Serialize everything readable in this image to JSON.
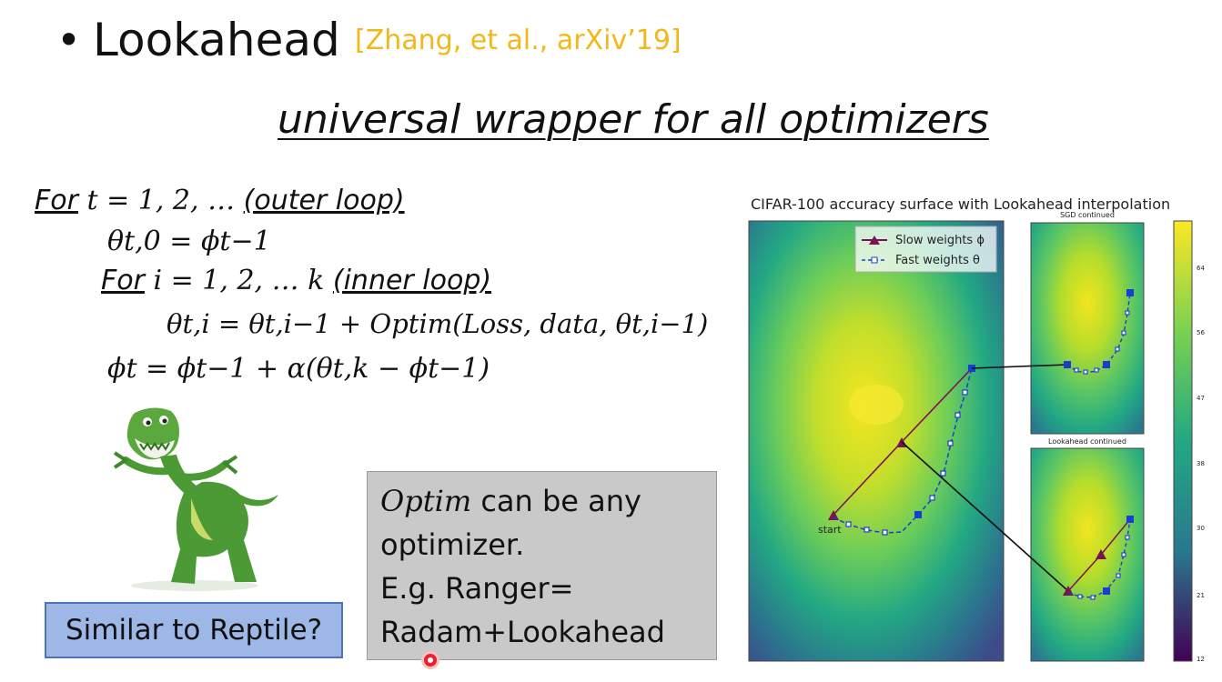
{
  "slide": {
    "bullet": "•",
    "title": "Lookahead",
    "citation": "[Zhang, et al., arXiv’19]",
    "subtitle": "universal wrapper for all optimizers"
  },
  "algorithm": {
    "outer_for": "For",
    "outer_range": "t  =  1, 2, …",
    "outer_comment": "(outer loop)",
    "init": "θt,0 = ϕt−1",
    "inner_for": "For",
    "inner_range": "i  =  1, 2, … k",
    "inner_comment": "(inner loop)",
    "inner_update": "θt,i = θt,i−1 + Optim(Loss, data, θt,i−1)",
    "outer_update": "ϕt = ϕt−1 + α(θt,k − ϕt−1)"
  },
  "reptile_box": {
    "text": "Similar to Reptile?"
  },
  "note_box": {
    "optim": "Optim",
    "line1_rest": " can be any",
    "line2": "optimizer.",
    "line3": "E.g. Ranger=",
    "line4": "Radam+Lookahead"
  },
  "figure": {
    "title": "CIFAR-100 accuracy surface with Lookahead interpolation",
    "top_panel_title": "SGD continued",
    "bottom_panel_title": "Lookahead continued",
    "legend_slow": "Slow weights ϕ",
    "legend_fast": "Fast weights θ",
    "start_label": "start",
    "colorbar_ticks": [
      "64",
      "56",
      "47",
      "38",
      "30",
      "21",
      "12"
    ]
  },
  "colors": {
    "citation": "#f2b81a",
    "slow_weights": "#7a1450",
    "fast_weights": "#1a3fd0",
    "reptile_box": "#9db7e6",
    "note_box": "#c9c9c9"
  }
}
